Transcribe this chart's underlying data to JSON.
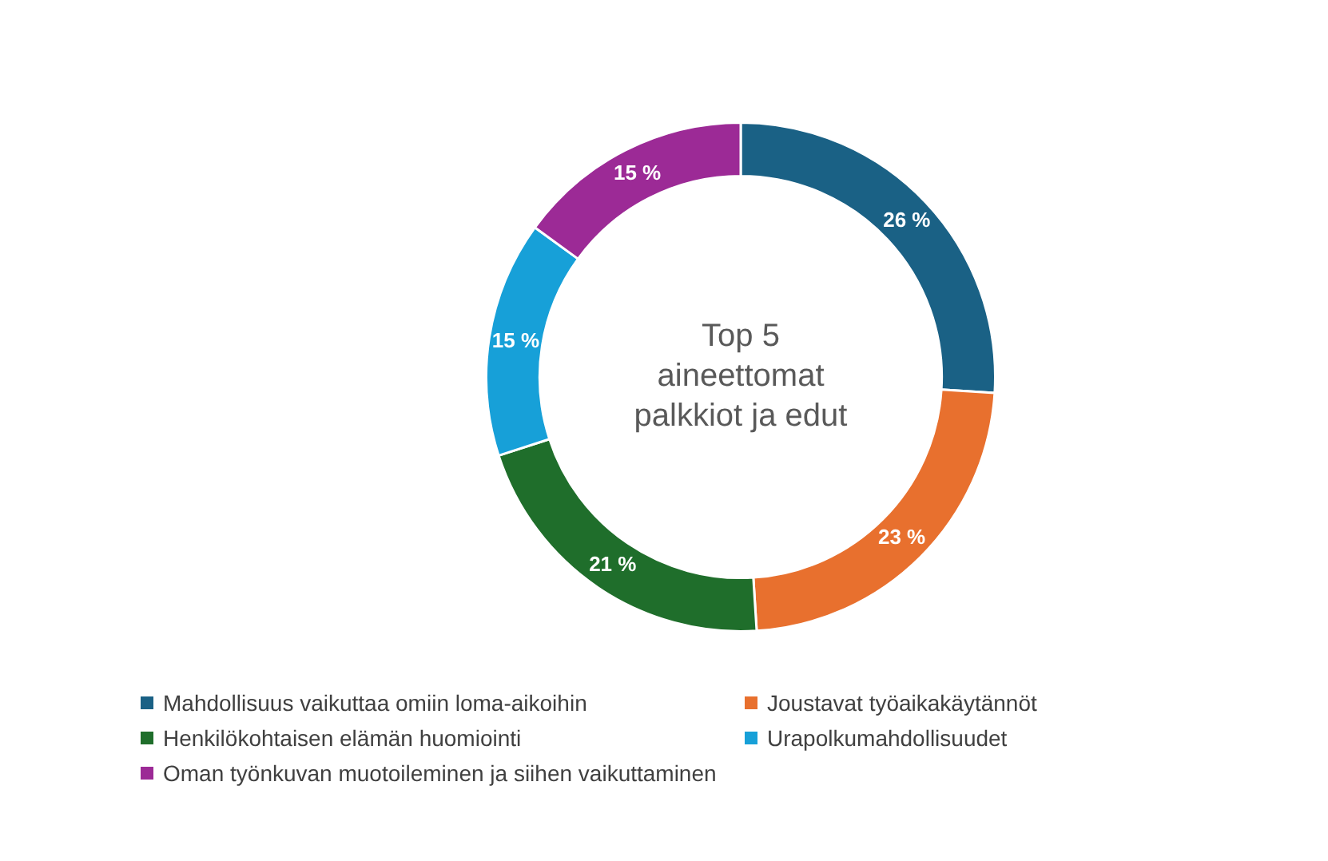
{
  "chart_data": {
    "type": "donut",
    "title": "Top 5 aineettomat palkkiot ja edut",
    "categories": [
      "Mahdollisuus vaikuttaa omiin loma-aikoihin",
      "Joustavat työaikakäytännöt",
      "Henkilökohtaisen elämän huomiointi",
      "Urapolkumahdollisuudet",
      "Oman työnkuvan muotoileminen ja siihen vaikuttaminen"
    ],
    "values": [
      26,
      23,
      21,
      15,
      15
    ],
    "colors": [
      "#1a6185",
      "#e8702e",
      "#1f6e2b",
      "#17a0d8",
      "#9c2a96"
    ],
    "value_labels": [
      "26 %",
      "23 %",
      "21 %",
      "15 %",
      "15 %"
    ],
    "legend": "bottom"
  }
}
